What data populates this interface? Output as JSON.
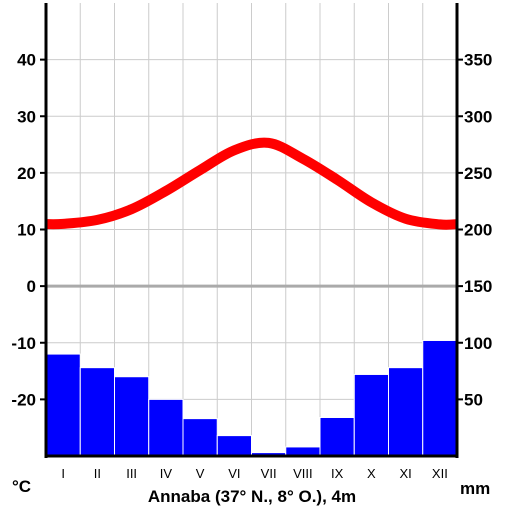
{
  "chart_data": {
    "type": "climate-diagram",
    "title": "Annaba (37° N., 8° O.), 4m",
    "categories": [
      "I",
      "II",
      "III",
      "IV",
      "V",
      "VI",
      "VII",
      "VIII",
      "IX",
      "X",
      "XI",
      "XII"
    ],
    "series": [
      {
        "type": "line",
        "axis": "left",
        "unit": "°C",
        "color": "#ff0000",
        "values": [
          11.0,
          11.7,
          13.6,
          16.8,
          20.5,
          24.0,
          25.3,
          22.5,
          18.8,
          14.8,
          11.9,
          10.9
        ]
      },
      {
        "type": "bar",
        "axis": "right",
        "unit": "mm",
        "color": "#0000ff",
        "values": [
          90,
          78,
          70,
          50,
          33,
          18,
          3,
          8,
          34,
          72,
          78,
          102
        ]
      }
    ],
    "left_axis": {
      "unit": "°C",
      "ticks": [
        40,
        30,
        20,
        10,
        0,
        -10,
        -20
      ],
      "range": [
        -30,
        50
      ]
    },
    "right_axis": {
      "unit": "mm",
      "ticks": [
        350,
        300,
        250,
        200,
        150,
        100,
        50
      ],
      "range": [
        0,
        400
      ]
    },
    "zero_line_color": "#aaaaaa",
    "grid": true
  }
}
